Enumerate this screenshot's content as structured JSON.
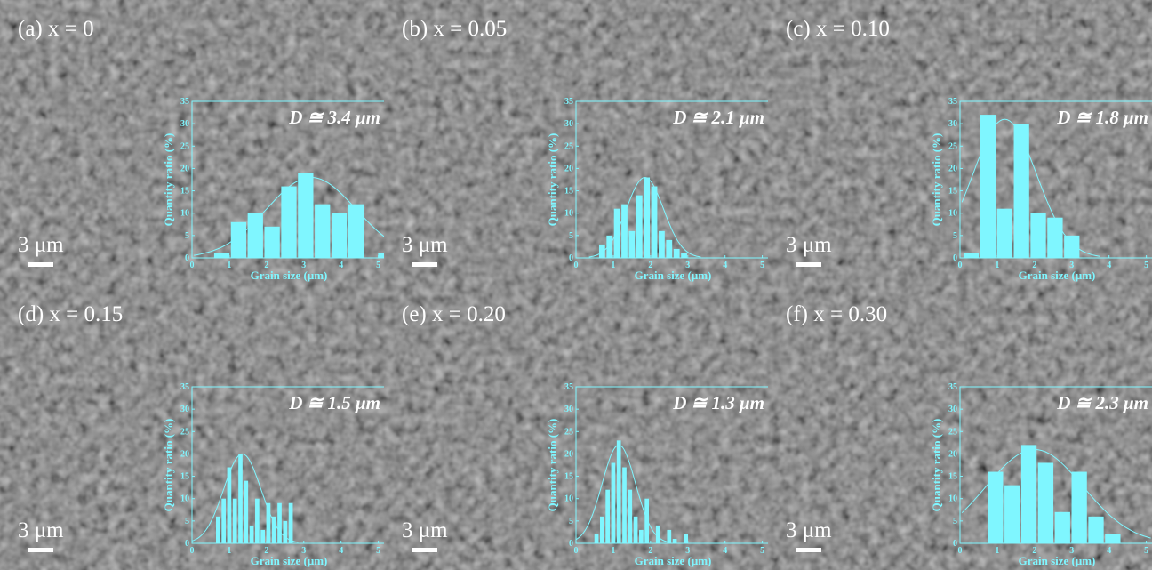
{
  "figure": {
    "scale_bar": "3 μm"
  },
  "chart_data": [
    {
      "type": "bar",
      "panel_label": "(a) x = 0",
      "annotation": "D ≅ 3.4 μm",
      "xlabel": "Grain size (μm)",
      "ylabel": "Quantity ratio (%)",
      "xlim": [
        0,
        5.2
      ],
      "ylim": [
        0,
        35
      ],
      "xticks": [
        0,
        1,
        2,
        3,
        4,
        5
      ],
      "yticks": [
        0,
        5,
        10,
        15,
        20,
        25,
        30,
        35
      ],
      "bin_width": 0.45,
      "x": [
        0.8,
        1.25,
        1.7,
        2.15,
        2.6,
        3.05,
        3.5,
        3.95,
        4.4,
        4.85,
        5.2
      ],
      "values": [
        1,
        8,
        10,
        7,
        16,
        19,
        12,
        10,
        12,
        0,
        1
      ],
      "fit": {
        "type": "gaussian",
        "center": 3.2,
        "sigma": 1.2,
        "peak": 18
      }
    },
    {
      "type": "bar",
      "panel_label": "(b) x = 0.05",
      "annotation": "D ≅ 2.1 μm",
      "xlabel": "Grain size (μm)",
      "ylabel": "Quantity ratio (%)",
      "xlim": [
        0,
        5.2
      ],
      "ylim": [
        0,
        35
      ],
      "xticks": [
        0,
        1,
        2,
        3,
        4,
        5
      ],
      "yticks": [
        0,
        5,
        10,
        15,
        20,
        25,
        30,
        35
      ],
      "bin_width": 0.2,
      "x": [
        0.7,
        0.9,
        1.1,
        1.3,
        1.5,
        1.7,
        1.9,
        2.1,
        2.3,
        2.5,
        2.7,
        2.9
      ],
      "values": [
        3,
        5,
        11,
        12,
        6,
        14,
        18,
        16,
        6,
        4,
        2,
        1
      ],
      "fit": {
        "type": "gaussian",
        "center": 1.85,
        "sigma": 0.5,
        "peak": 18
      }
    },
    {
      "type": "bar",
      "panel_label": "(c) x = 0.10",
      "annotation": "D ≅ 1.8 μm",
      "xlabel": "Grain size (μm)",
      "ylabel": "Quantity ratio (%)",
      "xlim": [
        0,
        5.2
      ],
      "ylim": [
        0,
        35
      ],
      "xticks": [
        0,
        1,
        2,
        3,
        4,
        5
      ],
      "yticks": [
        0,
        5,
        10,
        15,
        20,
        25,
        30,
        35
      ],
      "bin_width": 0.45,
      "x": [
        0.3,
        0.75,
        1.2,
        1.65,
        2.1,
        2.55,
        3.0
      ],
      "values": [
        1,
        32,
        11,
        30,
        10,
        9,
        5
      ],
      "fit": {
        "type": "gaussian",
        "center": 1.2,
        "sigma": 0.85,
        "peak": 31
      }
    },
    {
      "type": "bar",
      "panel_label": "(d) x = 0.15",
      "annotation": "D ≅ 1.5 μm",
      "xlabel": "Grain size (μm)",
      "ylabel": "Quantity ratio (%)",
      "xlim": [
        0,
        5.2
      ],
      "ylim": [
        0,
        35
      ],
      "xticks": [
        0,
        1,
        2,
        3,
        4,
        5
      ],
      "yticks": [
        0,
        5,
        10,
        15,
        20,
        25,
        30,
        35
      ],
      "bin_width": 0.15,
      "x": [
        0.7,
        0.85,
        1.0,
        1.15,
        1.3,
        1.45,
        1.6,
        1.75,
        1.9,
        2.05,
        2.2,
        2.35,
        2.5,
        2.65
      ],
      "values": [
        6,
        10,
        17,
        10,
        20,
        14,
        4,
        10,
        3,
        9,
        6,
        9,
        5,
        9
      ],
      "fit": {
        "type": "gaussian",
        "center": 1.35,
        "sigma": 0.5,
        "peak": 20
      }
    },
    {
      "type": "bar",
      "panel_label": "(e) x = 0.20",
      "annotation": "D ≅ 1.3 μm",
      "xlabel": "Grain size (μm)",
      "ylabel": "Quantity ratio (%)",
      "xlim": [
        0,
        5.2
      ],
      "ylim": [
        0,
        35
      ],
      "xticks": [
        0,
        1,
        2,
        3,
        4,
        5
      ],
      "yticks": [
        0,
        5,
        10,
        15,
        20,
        25,
        30,
        35
      ],
      "bin_width": 0.15,
      "x": [
        0.55,
        0.7,
        0.85,
        1.0,
        1.15,
        1.3,
        1.45,
        1.6,
        1.75,
        1.9,
        2.05,
        2.2,
        2.35,
        2.5,
        2.65,
        2.8,
        2.95
      ],
      "values": [
        2,
        6,
        12,
        18,
        23,
        17,
        12,
        6,
        3,
        10,
        0,
        4,
        0,
        3,
        1,
        0,
        2
      ],
      "fit": {
        "type": "gaussian",
        "center": 1.15,
        "sigma": 0.45,
        "peak": 22
      }
    },
    {
      "type": "bar",
      "panel_label": "(f) x = 0.30",
      "annotation": "D ≅ 2.3 μm",
      "xlabel": "Grain size (μm)",
      "ylabel": "Quantity ratio (%)",
      "xlim": [
        0,
        5.2
      ],
      "ylim": [
        0,
        35
      ],
      "xticks": [
        0,
        1,
        2,
        3,
        4,
        5
      ],
      "yticks": [
        0,
        5,
        10,
        15,
        20,
        25,
        30,
        35
      ],
      "bin_width": 0.45,
      "x": [
        0.95,
        1.4,
        1.85,
        2.3,
        2.75,
        3.2,
        3.65,
        4.1
      ],
      "values": [
        16,
        13,
        22,
        18,
        7,
        16,
        6,
        2
      ],
      "fit": {
        "type": "gaussian",
        "center": 2.0,
        "sigma": 1.3,
        "peak": 21
      }
    }
  ]
}
